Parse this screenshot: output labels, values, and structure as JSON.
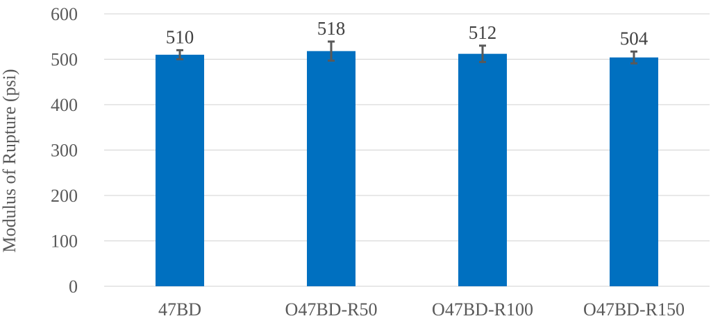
{
  "chart_data": {
    "type": "bar",
    "title": "",
    "xlabel": "",
    "ylabel": "Modulus of Rupture (psi)",
    "ylim": [
      0,
      600
    ],
    "yticks": [
      0,
      100,
      200,
      300,
      400,
      500,
      600
    ],
    "grid": true,
    "legend": "none",
    "categories": [
      "47BD",
      "O47BD-R50",
      "O47BD-R100",
      "O47BD-R150"
    ],
    "series": [
      {
        "values": [
          510,
          518,
          512,
          504
        ],
        "error": [
          10,
          21,
          18,
          13
        ],
        "data_labels": [
          "510",
          "518",
          "512",
          "504"
        ],
        "color": "#0070c0"
      }
    ],
    "error_bar_color": "#595959"
  }
}
